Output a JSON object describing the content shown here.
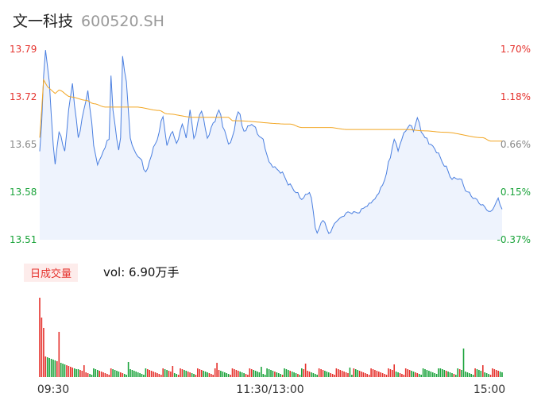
{
  "header": {
    "name": "文一科技",
    "code": "600520.SH"
  },
  "volume_panel": {
    "tag": "日成交量",
    "text": "vol: 6.90万手"
  },
  "colors": {
    "price_line": "#4a7fe0",
    "avg_line": "#f2a623",
    "up": "#e5322d",
    "down": "#1aa33a",
    "neutral": "#888888"
  },
  "chart_data": [
    {
      "type": "line",
      "title": "",
      "y_ticks_left": [
        "13.79",
        "13.72",
        "13.65",
        "13.58",
        "13.51"
      ],
      "y_ticks_right": [
        "1.70%",
        "1.18%",
        "0.66%",
        "0.15%",
        "-0.37%"
      ],
      "ylim": [
        13.51,
        13.79
      ],
      "x_ticks": [
        "09:30",
        "11:30/13:00",
        "15:00"
      ],
      "x_count": 241,
      "series": [
        {
          "key": "price",
          "keypoints": [
            [
              0,
              13.64
            ],
            [
              3,
              13.79
            ],
            [
              5,
              13.74
            ],
            [
              7,
              13.65
            ],
            [
              8,
              13.62
            ],
            [
              10,
              13.67
            ],
            [
              13,
              13.64
            ],
            [
              15,
              13.7
            ],
            [
              17,
              13.74
            ],
            [
              18,
              13.71
            ],
            [
              20,
              13.66
            ],
            [
              23,
              13.7
            ],
            [
              25,
              13.73
            ],
            [
              27,
              13.68
            ],
            [
              28,
              13.65
            ],
            [
              30,
              13.62
            ],
            [
              33,
              13.64
            ],
            [
              36,
              13.66
            ],
            [
              37,
              13.75
            ],
            [
              38,
              13.7
            ],
            [
              40,
              13.66
            ],
            [
              41,
              13.64
            ],
            [
              42,
              13.66
            ],
            [
              43,
              13.78
            ],
            [
              45,
              13.74
            ],
            [
              47,
              13.66
            ],
            [
              49,
              13.64
            ],
            [
              52,
              13.63
            ],
            [
              55,
              13.61
            ],
            [
              60,
              13.65
            ],
            [
              64,
              13.69
            ],
            [
              66,
              13.65
            ],
            [
              69,
              13.67
            ],
            [
              71,
              13.65
            ],
            [
              74,
              13.68
            ],
            [
              76,
              13.66
            ],
            [
              78,
              13.7
            ],
            [
              80,
              13.66
            ],
            [
              84,
              13.7
            ],
            [
              87,
              13.66
            ],
            [
              90,
              13.68
            ],
            [
              93,
              13.7
            ],
            [
              96,
              13.67
            ],
            [
              98,
              13.65
            ],
            [
              100,
              13.66
            ],
            [
              103,
              13.7
            ],
            [
              106,
              13.67
            ],
            [
              110,
              13.68
            ],
            [
              115,
              13.66
            ],
            [
              120,
              13.62
            ],
            [
              125,
              13.61
            ],
            [
              130,
              13.59
            ],
            [
              133,
              13.58
            ],
            [
              136,
              13.57
            ],
            [
              140,
              13.58
            ],
            [
              144,
              13.52
            ],
            [
              147,
              13.54
            ],
            [
              150,
              13.52
            ],
            [
              155,
              13.54
            ],
            [
              160,
              13.55
            ],
            [
              165,
              13.55
            ],
            [
              170,
              13.56
            ],
            [
              174,
              13.57
            ],
            [
              178,
              13.59
            ],
            [
              182,
              13.63
            ],
            [
              184,
              13.66
            ],
            [
              186,
              13.64
            ],
            [
              188,
              13.66
            ],
            [
              190,
              13.67
            ],
            [
              192,
              13.68
            ],
            [
              194,
              13.67
            ],
            [
              196,
              13.69
            ],
            [
              198,
              13.67
            ],
            [
              200,
              13.66
            ],
            [
              203,
              13.65
            ],
            [
              206,
              13.64
            ],
            [
              210,
              13.62
            ],
            [
              214,
              13.6
            ],
            [
              218,
              13.6
            ],
            [
              222,
              13.58
            ],
            [
              226,
              13.57
            ],
            [
              230,
              13.56
            ],
            [
              234,
              13.55
            ],
            [
              236,
              13.56
            ],
            [
              238,
              13.57
            ],
            [
              240,
              13.555
            ]
          ]
        },
        {
          "key": "avg",
          "keypoints": [
            [
              0,
              13.66
            ],
            [
              1,
              13.7
            ],
            [
              2,
              13.745
            ],
            [
              4,
              13.735
            ],
            [
              6,
              13.73
            ],
            [
              8,
              13.725
            ],
            [
              10,
              13.73
            ],
            [
              16,
              13.72
            ],
            [
              24,
              13.715
            ],
            [
              28,
              13.71
            ],
            [
              34,
              13.705
            ],
            [
              50,
              13.705
            ],
            [
              62,
              13.7
            ],
            [
              66,
              13.695
            ],
            [
              80,
              13.69
            ],
            [
              98,
              13.69
            ],
            [
              100,
              13.685
            ],
            [
              130,
              13.68
            ],
            [
              136,
              13.675
            ],
            [
              150,
              13.675
            ],
            [
              160,
              13.672
            ],
            [
              190,
              13.672
            ],
            [
              200,
              13.67
            ],
            [
              210,
              13.668
            ],
            [
              230,
              13.66
            ],
            [
              234,
              13.655
            ],
            [
              240,
              13.655
            ]
          ]
        }
      ]
    },
    {
      "type": "bar",
      "title": "",
      "x_ticks": [
        "09:30",
        "11:30/13:00",
        "15:00"
      ],
      "note": "volume bars, red = up minute, green = down minute"
    }
  ]
}
